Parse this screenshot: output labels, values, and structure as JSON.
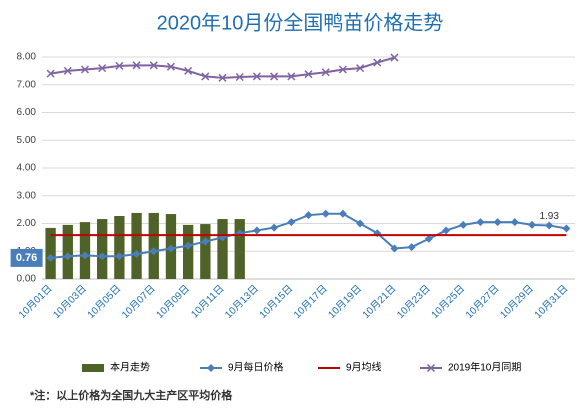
{
  "chart_data": {
    "type": "bar-line",
    "title": "2020年10月份全国鸭苗价格走势",
    "categories": [
      "10月01日",
      null,
      "10月03日",
      null,
      "10月05日",
      null,
      "10月07日",
      null,
      "10月09日",
      null,
      "10月11日",
      null,
      "10月13日",
      null,
      "10月15日",
      null,
      "10月17日",
      null,
      "10月19日",
      null,
      "10月21日",
      null,
      "10月23日",
      null,
      "10月25日",
      null,
      "10月27日",
      null,
      "10月29日",
      null,
      "10月31日"
    ],
    "ylim": [
      0,
      8
    ],
    "yticks": [
      {
        "value": 0,
        "label": "0.00"
      },
      {
        "value": 1,
        "label": "1.00"
      },
      {
        "value": 2,
        "label": "2.00"
      },
      {
        "value": 3,
        "label": "3.00"
      },
      {
        "value": 4,
        "label": "4.00"
      },
      {
        "value": 5,
        "label": "5.00"
      },
      {
        "value": 6,
        "label": "6.00"
      },
      {
        "value": 7,
        "label": "7.00"
      },
      {
        "value": 8,
        "label": "8.00"
      }
    ],
    "grid": true,
    "legend": "bottom",
    "series": [
      {
        "name": "本月走势",
        "kind": "bar",
        "color": "#4f6228",
        "values": [
          1.84,
          1.95,
          2.05,
          2.16,
          2.27,
          2.38,
          2.38,
          2.34,
          1.95,
          1.98,
          2.16,
          2.16,
          null,
          null,
          null,
          null,
          null,
          null,
          null,
          null,
          null,
          null,
          null,
          null,
          null,
          null,
          null,
          null,
          null,
          null,
          null
        ]
      },
      {
        "name": "9月每日价格",
        "kind": "line",
        "marker": "diamond",
        "color": "#4a7ebb",
        "values": [
          0.76,
          0.82,
          0.85,
          0.82,
          0.82,
          0.9,
          1.0,
          1.1,
          1.2,
          1.35,
          1.5,
          1.65,
          1.75,
          1.85,
          2.05,
          2.3,
          2.35,
          2.35,
          2.0,
          1.65,
          1.1,
          1.15,
          1.45,
          1.75,
          1.95,
          2.05,
          2.05,
          2.05,
          1.95,
          1.93,
          1.82
        ],
        "value_labels": [
          "0.76",
          null,
          null,
          null,
          null,
          null,
          null,
          null,
          null,
          null,
          null,
          null,
          null,
          null,
          null,
          null,
          null,
          null,
          null,
          null,
          null,
          null,
          null,
          null,
          null,
          null,
          null,
          null,
          null,
          "1.93",
          null
        ]
      },
      {
        "name": "9月均线",
        "kind": "line",
        "marker": "none",
        "color": "#c00000",
        "values": [
          1.58,
          1.58,
          1.58,
          1.58,
          1.58,
          1.58,
          1.58,
          1.58,
          1.58,
          1.58,
          1.58,
          1.58,
          1.58,
          1.58,
          1.58,
          1.58,
          1.58,
          1.58,
          1.58,
          1.58,
          1.58,
          1.58,
          1.58,
          1.58,
          1.58,
          1.58,
          1.58,
          1.58,
          1.58,
          1.58,
          1.58
        ]
      },
      {
        "name": "2019年10月同期",
        "kind": "line",
        "marker": "x",
        "color": "#8064a2",
        "values": [
          7.4,
          7.5,
          7.55,
          7.6,
          7.68,
          7.7,
          7.7,
          7.65,
          7.5,
          7.3,
          7.25,
          7.28,
          7.3,
          7.3,
          7.3,
          7.38,
          7.45,
          7.55,
          7.6,
          7.8,
          7.98,
          null,
          null,
          null,
          null,
          null,
          null,
          null,
          null,
          null,
          null
        ]
      }
    ],
    "note": "*注：以上价格为全国九大主产区平均价格"
  }
}
